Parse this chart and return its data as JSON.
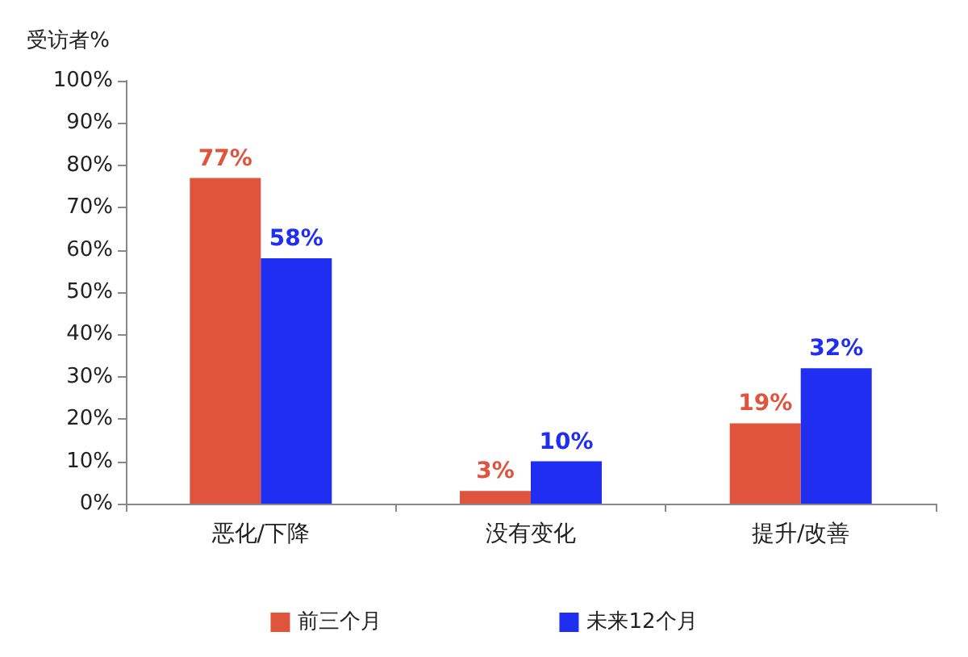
{
  "chart_data": {
    "type": "bar",
    "ylabel": "受访者%",
    "categories": [
      "恶化/下降",
      "没有变化",
      "提升/改善"
    ],
    "series": [
      {
        "name": "前三个月",
        "color": "#e0533d",
        "values": [
          77,
          3,
          19
        ],
        "value_labels": [
          "77%",
          "3%",
          "19%"
        ]
      },
      {
        "name": "未来12个月",
        "color": "#1f2ef0",
        "values": [
          58,
          10,
          32
        ],
        "value_labels": [
          "58%",
          "10%",
          "32%"
        ]
      }
    ],
    "ylim": [
      0,
      100
    ],
    "yticks": [
      {
        "value": 0,
        "label": "0%"
      },
      {
        "value": 10,
        "label": "10%"
      },
      {
        "value": 20,
        "label": "20%"
      },
      {
        "value": 30,
        "label": "30%"
      },
      {
        "value": 40,
        "label": "40%"
      },
      {
        "value": 50,
        "label": "50%"
      },
      {
        "value": 60,
        "label": "60%"
      },
      {
        "value": 70,
        "label": "70%"
      },
      {
        "value": 80,
        "label": "80%"
      },
      {
        "value": 90,
        "label": "90%"
      },
      {
        "value": 100,
        "label": "100%"
      }
    ],
    "grid": false,
    "legend": "bottom"
  }
}
